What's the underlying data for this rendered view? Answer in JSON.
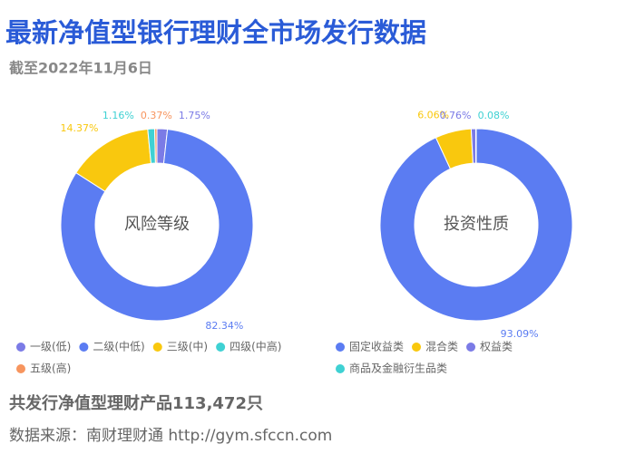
{
  "title": "最新净值型银行理财全市场发行数据",
  "subtitle": "截至2022年11月6日",
  "chart_data": [
    {
      "type": "pie",
      "center_label": "风险等级",
      "categories": [
        "一级(低)",
        "二级(中低)",
        "三级(中)",
        "四级(中高)",
        "五级(高)"
      ],
      "values": [
        1.75,
        82.34,
        14.37,
        1.16,
        0.37
      ],
      "value_labels": [
        "1.75%",
        "82.34%",
        "14.37%",
        "1.16%",
        "0.37%"
      ],
      "colors": [
        "#7b7be6",
        "#5b7cf2",
        "#f9c80e",
        "#3fd1d3",
        "#f7955e"
      ]
    },
    {
      "type": "pie",
      "center_label": "投资性质",
      "categories": [
        "固定收益类",
        "混合类",
        "权益类",
        "商品及金融衍生品类"
      ],
      "values": [
        93.09,
        6.06,
        0.76,
        0.08
      ],
      "value_labels": [
        "93.09%",
        "6.06%",
        "0.76%",
        "0.08%"
      ],
      "colors": [
        "#5b7cf2",
        "#f9c80e",
        "#7b7be6",
        "#3fd1d3"
      ]
    }
  ],
  "footer": {
    "total": "共发行净值型理财产品113,472只",
    "source": "数据来源：南财理财通 http://gym.sfccn.com"
  }
}
